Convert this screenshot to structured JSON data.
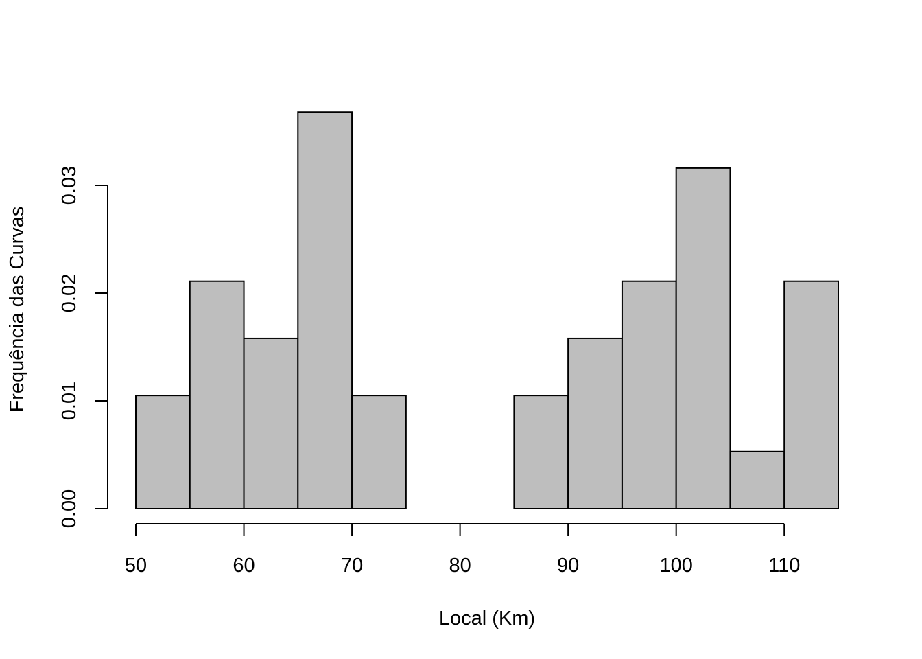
{
  "chart_data": {
    "type": "bar",
    "xlabel": "Local (Km)",
    "ylabel": "Frequência das Curvas",
    "bin_edges": [
      50,
      55,
      60,
      65,
      70,
      75,
      80,
      85,
      90,
      95,
      100,
      105,
      110,
      115
    ],
    "values": [
      0.0105,
      0.0211,
      0.0158,
      0.0368,
      0.0105,
      0,
      0,
      0.0105,
      0.0158,
      0.0211,
      0.0316,
      0.0053,
      0.0211
    ],
    "xlim": [
      50,
      115
    ],
    "ylim": [
      0,
      0.037
    ],
    "x_ticks": [
      50,
      60,
      70,
      80,
      90,
      100,
      110
    ],
    "x_tick_labels": [
      "50",
      "60",
      "70",
      "80",
      "90",
      "100",
      "110"
    ],
    "y_ticks": [
      0,
      0.01,
      0.02,
      0.03
    ],
    "y_tick_labels": [
      "0.00",
      "0.01",
      "0.02",
      "0.03"
    ],
    "bar_color": "#bebebe",
    "grid": false
  }
}
